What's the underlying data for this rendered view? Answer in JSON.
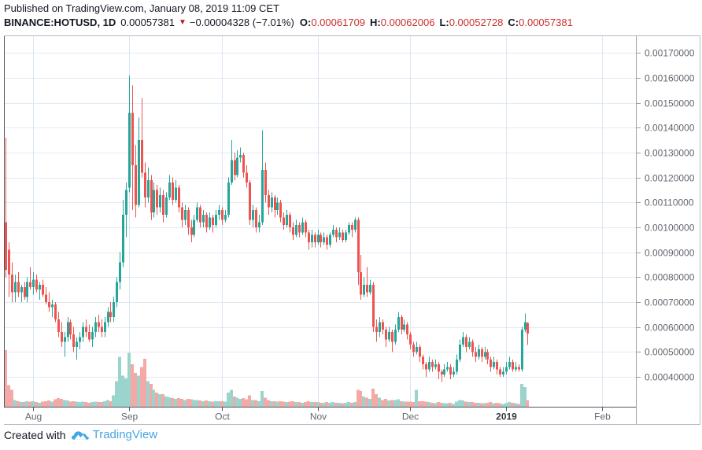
{
  "header": {
    "published_line": "Published on TradingView.com, January 08, 2019 11:09 CET",
    "symbol_text": "BINANCE:HOTUSD, 1D",
    "last_price": "0.00057381",
    "down_icon": "▼",
    "change": "−0.00004328 (−7.01%)",
    "ohlc": [
      {
        "label": "O:",
        "value": "0.00061709"
      },
      {
        "label": "H:",
        "value": "0.00062006"
      },
      {
        "label": "L:",
        "value": "0.00052728"
      },
      {
        "label": "C:",
        "value": "0.00057381"
      }
    ]
  },
  "footer": {
    "created_with": "Created with",
    "brand": "TradingView"
  },
  "colors": {
    "up": "#26a69a",
    "down": "#ef5350",
    "vol_up": "#9bd4cc",
    "vol_down": "#f5a9a6",
    "grid_h": "#e4e9f1",
    "grid_v": "#d9e6f3",
    "axis_text": "#62656e",
    "axis_text_bold": "#36383f",
    "border_dark": "#53555c",
    "border_mid": "#9a9da6",
    "border_light": "#b6b9c2",
    "change_red": "#b71c1c",
    "value_red": "#c9302c",
    "brand_blue": "#47a5e0",
    "logo_blue": "#3fa9e4"
  },
  "chart_data": {
    "type": "candlestick+volume",
    "symbol": "BINANCE:HOTUSD",
    "interval": "1D",
    "start_date": "2018-07-23",
    "end_date": "2019-01-08",
    "price_scale": 1e-08,
    "volume_unit": "relative-0-100",
    "y_axis": {
      "ticks": [
        "0.00170000",
        "0.00160000",
        "0.00150000",
        "0.00140000",
        "0.00130000",
        "0.00120000",
        "0.00110000",
        "0.00100000",
        "0.00090000",
        "0.00080000",
        "0.00070000",
        "0.00060000",
        "0.00050000",
        "0.00040000"
      ]
    },
    "x_axis": {
      "ticks": [
        {
          "label": "Aug",
          "index": 9,
          "bold": false
        },
        {
          "label": "Sep",
          "index": 40,
          "bold": false
        },
        {
          "label": "Oct",
          "index": 70,
          "bold": false
        },
        {
          "label": "Nov",
          "index": 101,
          "bold": false
        },
        {
          "label": "Dec",
          "index": 131,
          "bold": false
        },
        {
          "label": "2019",
          "index": 162,
          "bold": true
        },
        {
          "label": "Feb",
          "index": 193,
          "bold": false
        }
      ]
    },
    "ohlcv": [
      [
        102000,
        136000,
        80000,
        83000,
        100
      ],
      [
        91000,
        94000,
        72000,
        81000,
        38
      ],
      [
        81000,
        86000,
        70000,
        74000,
        30
      ],
      [
        74000,
        81000,
        70000,
        78000,
        12
      ],
      [
        78000,
        82000,
        72000,
        74000,
        10
      ],
      [
        74000,
        77000,
        70000,
        76000,
        8
      ],
      [
        76000,
        78000,
        71000,
        72000,
        8
      ],
      [
        72000,
        80000,
        70000,
        78000,
        10
      ],
      [
        78000,
        84000,
        75000,
        76000,
        9
      ],
      [
        76000,
        82000,
        73000,
        79000,
        10
      ],
      [
        79000,
        81000,
        74000,
        75000,
        8
      ],
      [
        75000,
        78000,
        71000,
        77000,
        7
      ],
      [
        77000,
        79000,
        72000,
        73000,
        9
      ],
      [
        73000,
        76000,
        69000,
        70000,
        10
      ],
      [
        70000,
        74000,
        66000,
        68000,
        11
      ],
      [
        68000,
        71000,
        64000,
        69000,
        9
      ],
      [
        69000,
        70000,
        62000,
        63000,
        13
      ],
      [
        63000,
        66000,
        56000,
        58000,
        15
      ],
      [
        58000,
        62000,
        52000,
        54000,
        14
      ],
      [
        54000,
        58000,
        48000,
        56000,
        12
      ],
      [
        56000,
        64000,
        54000,
        62000,
        11
      ],
      [
        62000,
        63000,
        55000,
        57000,
        9
      ],
      [
        57000,
        60000,
        50000,
        52000,
        10
      ],
      [
        52000,
        56000,
        47000,
        54000,
        9
      ],
      [
        54000,
        58000,
        51000,
        56000,
        8
      ],
      [
        56000,
        62000,
        54000,
        60000,
        9
      ],
      [
        60000,
        63000,
        56000,
        58000,
        8
      ],
      [
        58000,
        61000,
        54000,
        55000,
        7
      ],
      [
        55000,
        60000,
        52000,
        58000,
        8
      ],
      [
        58000,
        64000,
        56000,
        62000,
        9
      ],
      [
        62000,
        65000,
        58000,
        60000,
        8
      ],
      [
        60000,
        63000,
        56000,
        58000,
        8
      ],
      [
        58000,
        64000,
        56000,
        62000,
        10
      ],
      [
        62000,
        68000,
        60000,
        66000,
        12
      ],
      [
        66000,
        70000,
        62000,
        64000,
        10
      ],
      [
        64000,
        72000,
        62000,
        70000,
        20
      ],
      [
        70000,
        80000,
        68000,
        78000,
        45
      ],
      [
        78000,
        90000,
        75000,
        86000,
        88
      ],
      [
        86000,
        111000,
        84000,
        105000,
        55
      ],
      [
        105000,
        118000,
        96000,
        115000,
        50
      ],
      [
        116000,
        161000,
        114000,
        146000,
        95
      ],
      [
        146000,
        157000,
        107000,
        125000,
        75
      ],
      [
        125000,
        133000,
        104000,
        109000,
        60
      ],
      [
        109000,
        144000,
        108000,
        135000,
        55
      ],
      [
        135000,
        152000,
        120000,
        122000,
        70
      ],
      [
        122000,
        126000,
        108000,
        112000,
        85
      ],
      [
        112000,
        124000,
        110000,
        119000,
        45
      ],
      [
        119000,
        121000,
        103000,
        106000,
        40
      ],
      [
        106000,
        118000,
        104000,
        115000,
        30
      ],
      [
        115000,
        117000,
        105000,
        108000,
        25
      ],
      [
        108000,
        116000,
        106000,
        113000,
        22
      ],
      [
        113000,
        115000,
        102000,
        105000,
        22
      ],
      [
        105000,
        114000,
        104000,
        112000,
        18
      ],
      [
        112000,
        121000,
        111000,
        118000,
        17
      ],
      [
        118000,
        120000,
        109000,
        111000,
        15
      ],
      [
        111000,
        119000,
        110000,
        116000,
        14
      ],
      [
        116000,
        117000,
        106000,
        108000,
        15
      ],
      [
        108000,
        110000,
        100000,
        103000,
        14
      ],
      [
        103000,
        109000,
        101000,
        107000,
        12
      ],
      [
        107000,
        108000,
        97000,
        100000,
        14
      ],
      [
        100000,
        103000,
        94000,
        97000,
        13
      ],
      [
        97000,
        105000,
        96000,
        103000,
        12
      ],
      [
        103000,
        110000,
        102000,
        108000,
        12
      ],
      [
        108000,
        109000,
        100000,
        102000,
        11
      ],
      [
        102000,
        107000,
        100000,
        105000,
        10
      ],
      [
        105000,
        106000,
        98000,
        100000,
        11
      ],
      [
        100000,
        106000,
        99000,
        104000,
        10
      ],
      [
        104000,
        105000,
        98000,
        101000,
        9
      ],
      [
        101000,
        107000,
        100000,
        105000,
        10
      ],
      [
        105000,
        109000,
        103000,
        107000,
        10
      ],
      [
        107000,
        108000,
        101000,
        103000,
        10
      ],
      [
        103000,
        107000,
        102000,
        105000,
        9
      ],
      [
        105000,
        120000,
        104000,
        118000,
        25
      ],
      [
        118000,
        135000,
        117000,
        127000,
        30
      ],
      [
        127000,
        130000,
        119000,
        121000,
        18
      ],
      [
        121000,
        131000,
        120000,
        128000,
        16
      ],
      [
        128000,
        132000,
        126000,
        129000,
        14
      ],
      [
        129000,
        130000,
        120000,
        122000,
        15
      ],
      [
        122000,
        125000,
        116000,
        118000,
        13
      ],
      [
        118000,
        119000,
        101000,
        103000,
        20
      ],
      [
        103000,
        109000,
        100000,
        107000,
        12
      ],
      [
        107000,
        108000,
        98000,
        100000,
        12
      ],
      [
        100000,
        105000,
        98000,
        102000,
        10
      ],
      [
        102000,
        139000,
        101000,
        123000,
        28
      ],
      [
        123000,
        126000,
        110000,
        113000,
        16
      ],
      [
        113000,
        115000,
        105000,
        108000,
        12
      ],
      [
        108000,
        114000,
        106000,
        112000,
        10
      ],
      [
        112000,
        113000,
        104000,
        107000,
        10
      ],
      [
        107000,
        112000,
        105000,
        110000,
        9
      ],
      [
        110000,
        111000,
        102000,
        104000,
        10
      ],
      [
        104000,
        106000,
        99000,
        101000,
        9
      ],
      [
        101000,
        107000,
        100000,
        105000,
        8
      ],
      [
        105000,
        106000,
        98000,
        100000,
        9
      ],
      [
        100000,
        102000,
        95000,
        97000,
        10
      ],
      [
        97000,
        103000,
        96000,
        101000,
        8
      ],
      [
        101000,
        102000,
        96000,
        98000,
        8
      ],
      [
        98000,
        104000,
        97000,
        102000,
        7
      ],
      [
        102000,
        103000,
        96000,
        98000,
        8
      ],
      [
        98000,
        99000,
        91000,
        94000,
        10
      ],
      [
        94000,
        99000,
        92000,
        97000,
        8
      ],
      [
        97000,
        98000,
        92000,
        94000,
        8
      ],
      [
        94000,
        99000,
        93000,
        97000,
        8
      ],
      [
        97000,
        98000,
        92000,
        94000,
        7
      ],
      [
        94000,
        98000,
        93000,
        96000,
        7
      ],
      [
        96000,
        97000,
        91000,
        93000,
        8
      ],
      [
        93000,
        98000,
        92000,
        97000,
        7
      ],
      [
        97000,
        101000,
        96000,
        99000,
        8
      ],
      [
        99000,
        100000,
        94000,
        96000,
        7
      ],
      [
        96000,
        100000,
        95000,
        98000,
        7
      ],
      [
        98000,
        99000,
        94000,
        95000,
        6
      ],
      [
        95000,
        99000,
        94000,
        98000,
        7
      ],
      [
        98000,
        102000,
        97000,
        101000,
        8
      ],
      [
        101000,
        102000,
        96000,
        99000,
        7
      ],
      [
        99000,
        104000,
        98000,
        103000,
        8
      ],
      [
        103000,
        104000,
        77000,
        82000,
        30
      ],
      [
        82000,
        89000,
        71000,
        73000,
        28
      ],
      [
        73000,
        80000,
        72000,
        77000,
        18
      ],
      [
        77000,
        84000,
        72000,
        74000,
        16
      ],
      [
        74000,
        79000,
        73000,
        77000,
        14
      ],
      [
        77000,
        78000,
        58000,
        60000,
        32
      ],
      [
        60000,
        63000,
        54000,
        58000,
        22
      ],
      [
        58000,
        64000,
        56000,
        62000,
        16
      ],
      [
        62000,
        63000,
        57000,
        59000,
        12
      ],
      [
        59000,
        60000,
        52000,
        55000,
        14
      ],
      [
        55000,
        60000,
        54000,
        58000,
        11
      ],
      [
        58000,
        59000,
        50000,
        54000,
        12
      ],
      [
        54000,
        61000,
        53000,
        59000,
        12
      ],
      [
        59000,
        66000,
        58000,
        64000,
        13
      ],
      [
        64000,
        65000,
        57000,
        59000,
        10
      ],
      [
        59000,
        63000,
        58000,
        61000,
        9
      ],
      [
        61000,
        62000,
        55000,
        57000,
        9
      ],
      [
        57000,
        58000,
        51000,
        53000,
        9
      ],
      [
        53000,
        54000,
        48000,
        50000,
        8
      ],
      [
        50000,
        54000,
        49000,
        52000,
        30
      ],
      [
        52000,
        53000,
        46000,
        48000,
        10
      ],
      [
        48000,
        49000,
        43000,
        45000,
        10
      ],
      [
        45000,
        46000,
        40000,
        43000,
        9
      ],
      [
        43000,
        48000,
        42000,
        46000,
        8
      ],
      [
        46000,
        47000,
        42000,
        44000,
        7
      ],
      [
        44000,
        47000,
        43000,
        45000,
        6
      ],
      [
        45000,
        46000,
        39000,
        42000,
        8
      ],
      [
        42000,
        43000,
        38000,
        41000,
        7
      ],
      [
        41000,
        45000,
        40000,
        43000,
        6
      ],
      [
        43000,
        46000,
        42000,
        44000,
        6
      ],
      [
        44000,
        45000,
        39000,
        41000,
        7
      ],
      [
        41000,
        44000,
        40000,
        42000,
        5
      ],
      [
        42000,
        49000,
        41000,
        47000,
        9
      ],
      [
        47000,
        55000,
        46000,
        53000,
        12
      ],
      [
        53000,
        58000,
        52000,
        56000,
        11
      ],
      [
        56000,
        57000,
        50000,
        52000,
        9
      ],
      [
        52000,
        56000,
        51000,
        54000,
        8
      ],
      [
        54000,
        55000,
        48000,
        50000,
        8
      ],
      [
        50000,
        52000,
        46000,
        48000,
        7
      ],
      [
        48000,
        53000,
        47000,
        51000,
        7
      ],
      [
        51000,
        52000,
        46000,
        48000,
        6
      ],
      [
        48000,
        52000,
        47000,
        50000,
        6
      ],
      [
        50000,
        51000,
        45000,
        47000,
        7
      ],
      [
        47000,
        48000,
        42000,
        44000,
        8
      ],
      [
        44000,
        48000,
        43000,
        46000,
        6
      ],
      [
        46000,
        47000,
        41000,
        43000,
        7
      ],
      [
        43000,
        44000,
        40000,
        41000,
        6
      ],
      [
        41000,
        44000,
        40000,
        42000,
        5
      ],
      [
        42000,
        46000,
        41000,
        44000,
        6
      ],
      [
        44000,
        48000,
        43000,
        46000,
        8
      ],
      [
        46000,
        47000,
        42000,
        43000,
        7
      ],
      [
        43000,
        46000,
        42000,
        44000,
        6
      ],
      [
        44000,
        45000,
        42000,
        43000,
        5
      ],
      [
        43000,
        60000,
        42000,
        59000,
        40
      ],
      [
        59000,
        65500,
        58000,
        62000,
        35
      ],
      [
        61709,
        62006,
        52728,
        57381,
        12
      ]
    ]
  }
}
